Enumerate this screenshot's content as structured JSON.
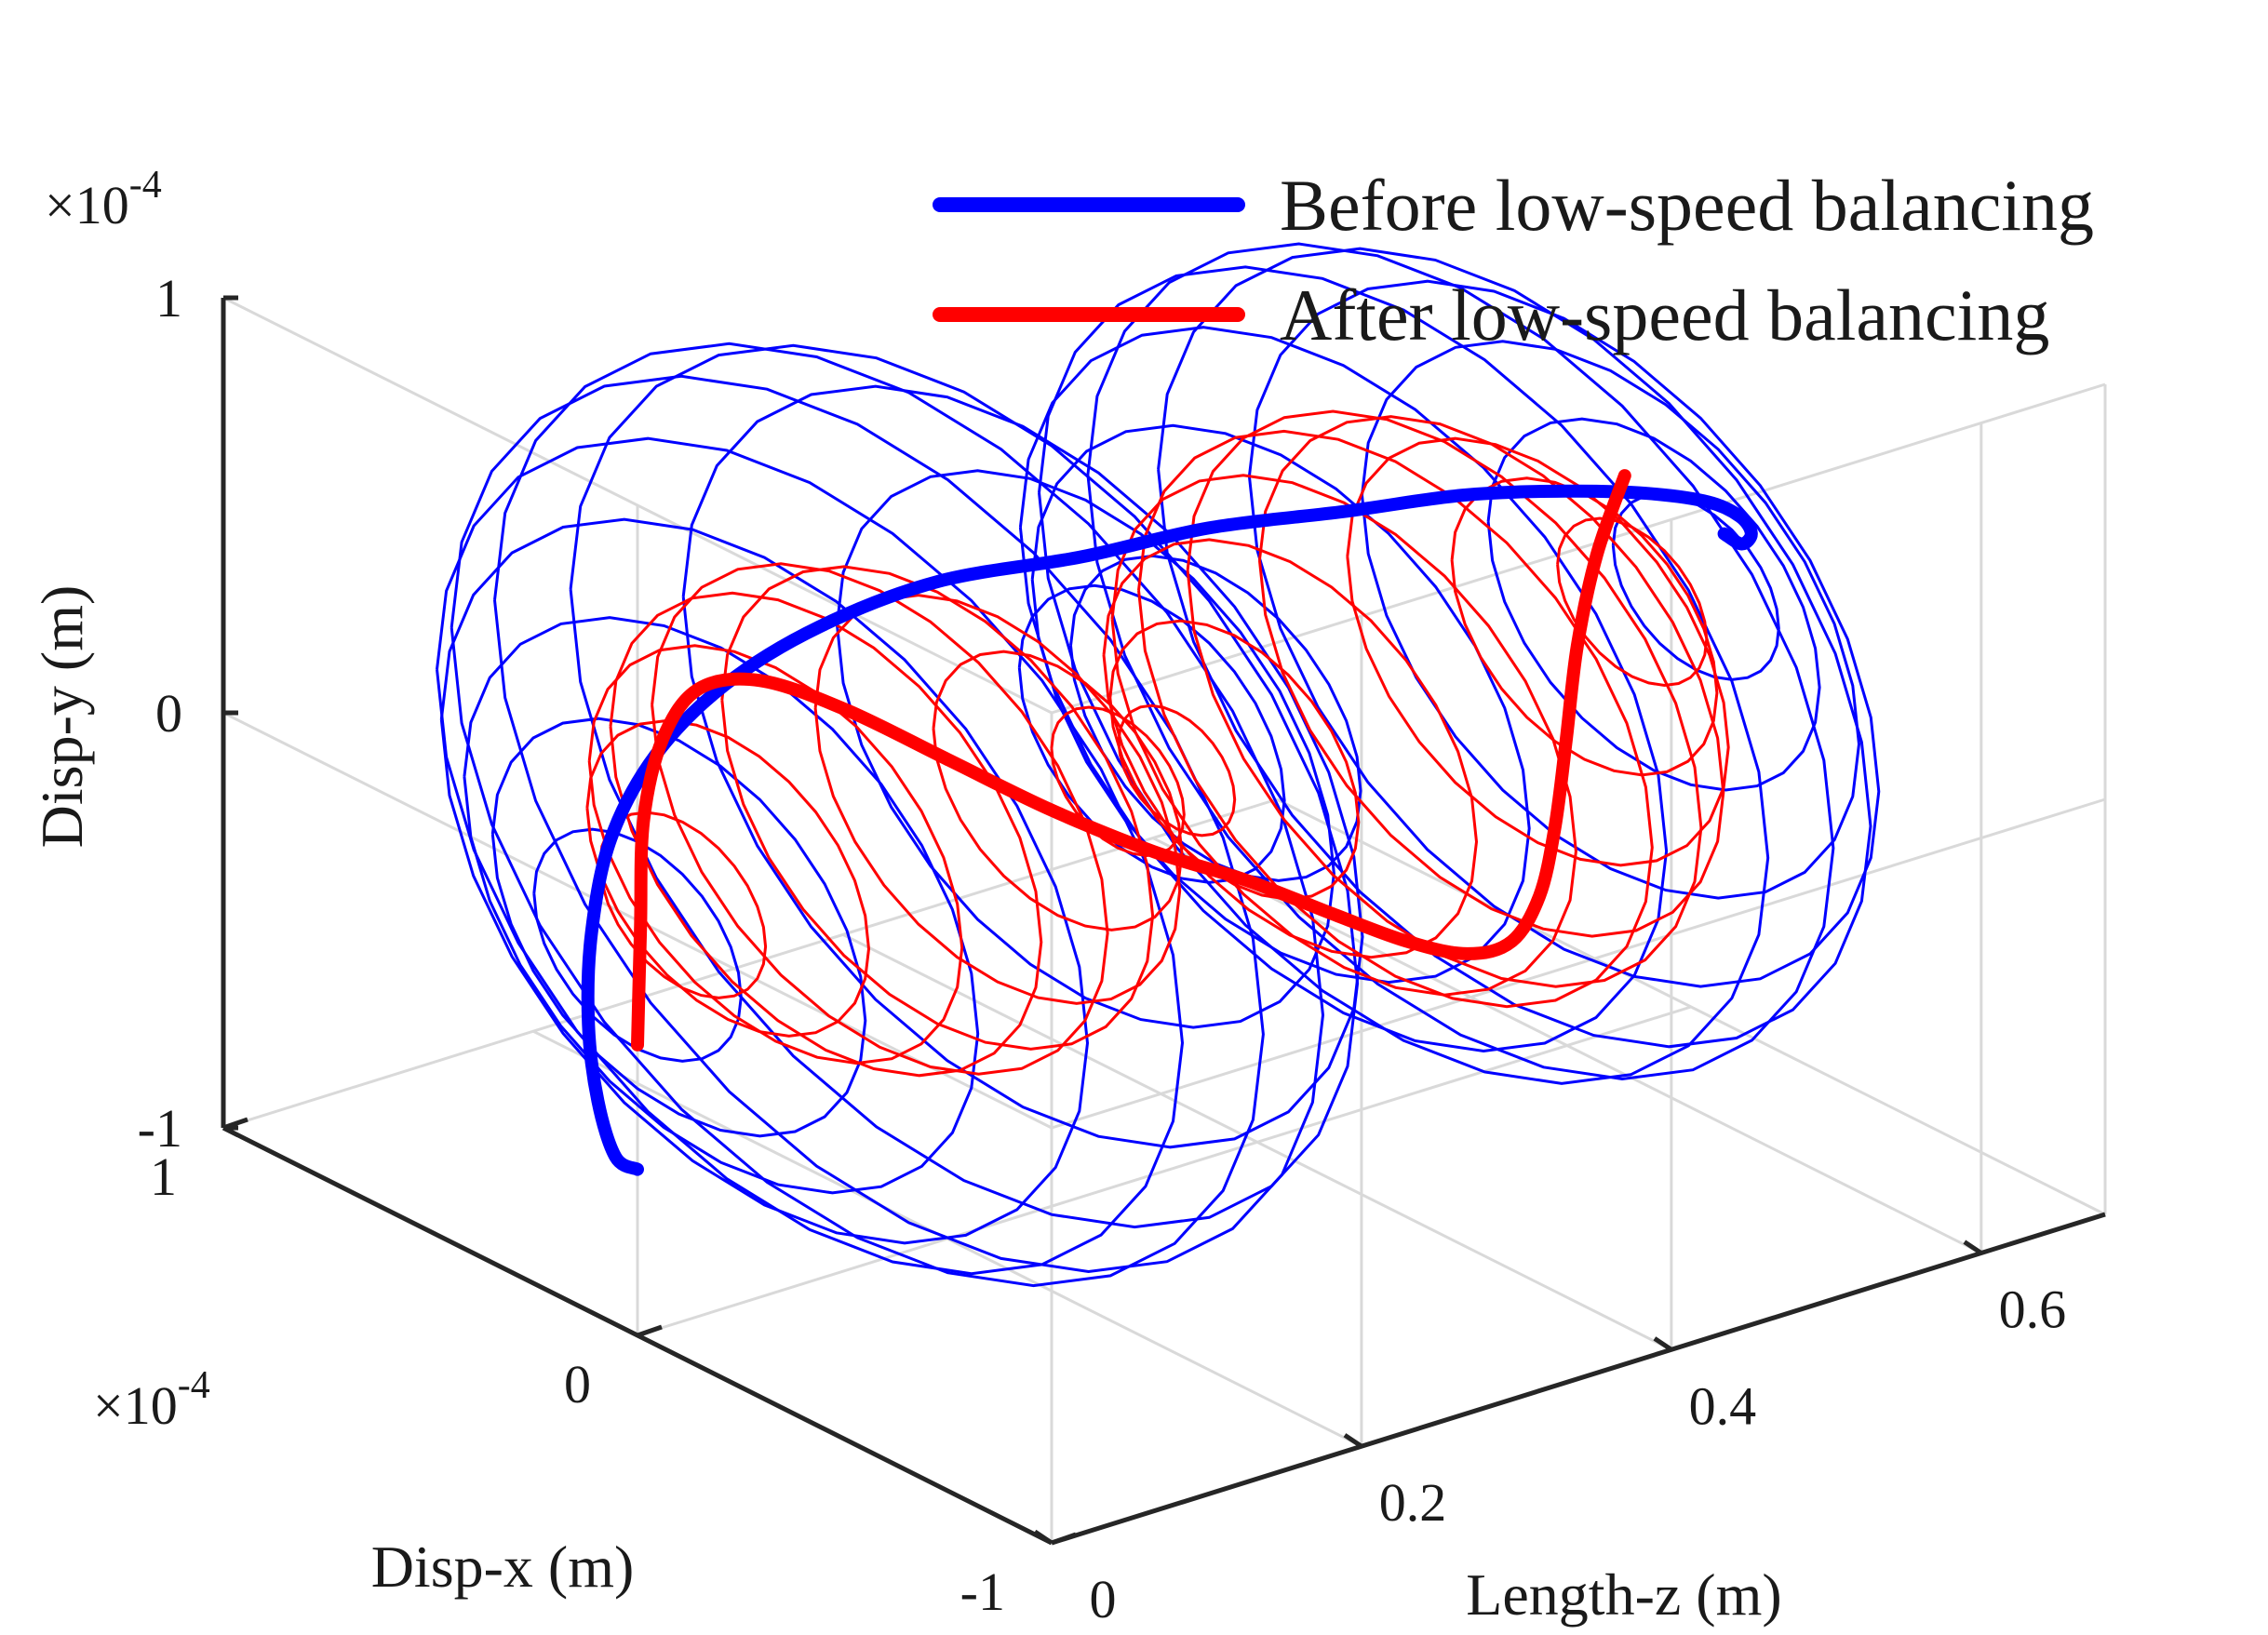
{
  "chart_data": {
    "type": "line",
    "projection": "3d",
    "xlabel": "Length-z (m)",
    "ylabel": "Disp-x (m)",
    "zlabel": "Disp-y (m)",
    "x_ticks": [
      "0",
      "0.2",
      "0.4",
      "0.6"
    ],
    "disp_x_ticks": [
      "1",
      "0",
      "-1"
    ],
    "disp_y_ticks": [
      "1",
      "0",
      "-1"
    ],
    "disp_x_exponent": "×10",
    "disp_x_exponent_power": "-4",
    "disp_y_exponent": "×10",
    "disp_y_exponent_power": "-4",
    "length_range": [
      0,
      0.68
    ],
    "disp_range": [
      -1,
      1
    ],
    "grid": true,
    "legend_position": "top-right",
    "series": [
      {
        "name": "Before low-speed balancing",
        "color": "#0000ff",
        "line_width": "thick",
        "mode_shape": "first-bending",
        "z": [
          0.0,
          0.034,
          0.068,
          0.102,
          0.136,
          0.17,
          0.204,
          0.238,
          0.272,
          0.306,
          0.34,
          0.374,
          0.408,
          0.442,
          0.476,
          0.51,
          0.544,
          0.578,
          0.612,
          0.646,
          0.68
        ],
        "disp_x": [
          0.0,
          0.18,
          0.35,
          0.5,
          0.62,
          0.7,
          0.72,
          0.68,
          0.58,
          0.42,
          0.2,
          0.02,
          -0.18,
          -0.34,
          -0.46,
          -0.53,
          -0.55,
          -0.5,
          -0.4,
          -0.25,
          -0.08
        ],
        "disp_y": [
          -0.6,
          -0.7,
          -0.69,
          -0.62,
          -0.5,
          -0.35,
          -0.2,
          -0.05,
          0.1,
          0.25,
          0.38,
          0.5,
          0.6,
          0.68,
          0.71,
          0.7,
          0.65,
          0.55,
          0.42,
          0.28,
          0.18
        ]
      },
      {
        "name": "After low-speed balancing",
        "color": "#ff0000",
        "line_width": "thick",
        "mode_shape": "second-bending",
        "z": [
          0.0,
          0.034,
          0.068,
          0.102,
          0.136,
          0.17,
          0.204,
          0.238,
          0.272,
          0.306,
          0.34,
          0.374,
          0.408,
          0.442,
          0.476,
          0.51,
          0.544,
          0.578,
          0.612,
          0.646,
          0.68
        ],
        "disp_x": [
          0.0,
          0.12,
          0.24,
          0.32,
          0.36,
          0.34,
          0.26,
          0.14,
          0.02,
          -0.1,
          -0.2,
          -0.28,
          -0.33,
          -0.35,
          -0.33,
          -0.27,
          -0.18,
          -0.08,
          0.02,
          0.1,
          0.16
        ],
        "disp_y": [
          -0.3,
          -0.12,
          0.04,
          0.16,
          0.22,
          0.21,
          0.14,
          0.04,
          -0.06,
          -0.14,
          -0.2,
          -0.28,
          -0.36,
          -0.42,
          -0.44,
          -0.4,
          -0.32,
          -0.2,
          -0.06,
          0.08,
          0.2
        ]
      }
    ],
    "whirl_orbits": [
      {
        "series": "Before low-speed balancing",
        "color": "#0000ff",
        "z": [
          0.0,
          0.034,
          0.068,
          0.102,
          0.136,
          0.17,
          0.204,
          0.238,
          0.272,
          0.306,
          0.34,
          0.374,
          0.408,
          0.442,
          0.476,
          0.51,
          0.544,
          0.578,
          0.612,
          0.646,
          0.68
        ],
        "radius": [
          0.25,
          0.45,
          0.62,
          0.78,
          0.9,
          0.98,
          1.0,
          0.95,
          0.82,
          0.6,
          0.32,
          0.35,
          0.6,
          0.78,
          0.88,
          0.9,
          0.86,
          0.76,
          0.6,
          0.4,
          0.2
        ]
      },
      {
        "series": "After low-speed balancing",
        "color": "#ff0000",
        "z": [
          0.034,
          0.068,
          0.102,
          0.136,
          0.17,
          0.204,
          0.238,
          0.272,
          0.306,
          0.34,
          0.374,
          0.408,
          0.442,
          0.476,
          0.51,
          0.544,
          0.578,
          0.612,
          0.646
        ],
        "radius": [
          0.2,
          0.34,
          0.45,
          0.52,
          0.55,
          0.52,
          0.44,
          0.3,
          0.16,
          0.14,
          0.3,
          0.45,
          0.56,
          0.62,
          0.62,
          0.56,
          0.46,
          0.32,
          0.18
        ]
      }
    ]
  }
}
